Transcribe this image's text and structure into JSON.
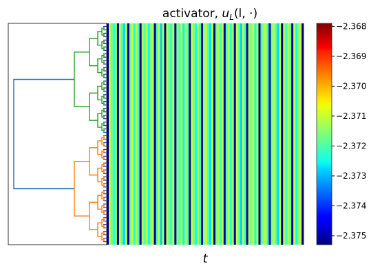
{
  "chart_data": {
    "type": "heatmap",
    "title": "activator, $u_L(l, \\cdot)$",
    "title_parts": {
      "prefix": "activator, ",
      "u": "u",
      "sub": "L",
      "args": "(l, ·)"
    },
    "xlabel": "t",
    "ylabel": "",
    "colormap": "jet",
    "colorbar": {
      "min": -2.3753,
      "max": -2.3679,
      "ticks": [
        -2.368,
        -2.369,
        -2.37,
        -2.371,
        -2.372,
        -2.373,
        -2.374,
        -2.375
      ],
      "tick_labels": [
        "−2.368",
        "−2.369",
        "−2.370",
        "−2.371",
        "−2.372",
        "−2.373",
        "−2.374",
        "−2.375"
      ]
    },
    "heatmap_column_values": [
      -2.3752,
      -2.3712,
      -2.3718,
      -2.3722,
      -2.3714,
      -2.3752,
      -2.3712,
      -2.372,
      -2.3728,
      -2.3712,
      -2.375,
      -2.3716,
      -2.3711,
      -2.3723,
      -2.3711,
      -2.3721,
      -2.3752,
      -2.3713,
      -2.3719,
      -2.3711,
      -2.3725,
      -2.3716,
      -2.3712,
      -2.3751,
      -2.372,
      -2.3712,
      -2.3729,
      -2.3714,
      -2.3752,
      -2.3711,
      -2.3718,
      -2.3722,
      -2.3712,
      -2.375,
      -2.3715,
      -2.3721,
      -2.3711,
      -2.3726,
      -2.3713,
      -2.3719,
      -2.3752,
      -2.3712,
      -2.3717,
      -2.3724,
      -2.3711,
      -2.3722,
      -2.3751,
      -2.3714,
      -2.3712,
      -2.372,
      -2.3727,
      -2.3711,
      -2.3752,
      -2.3716,
      -2.3713,
      -2.3721,
      -2.3711,
      -2.375,
      -2.3719,
      -2.3712,
      -2.3723,
      -2.3714,
      -2.3752,
      -2.3711,
      -2.3718,
      -2.3729,
      -2.3712,
      -2.3721,
      -2.3751,
      -2.3713,
      -2.3717,
      -2.3711,
      -2.3725,
      -2.3712,
      -2.3752,
      -2.372,
      -2.3714,
      -2.3711,
      -2.3722,
      -2.375,
      -2.3716,
      -2.3712,
      -2.3719,
      -2.3728,
      -2.3711,
      -2.3752,
      -2.3713,
      -2.3721,
      -2.3712,
      -2.3718,
      -2.3751,
      -2.3711,
      -2.3724,
      -2.3714,
      -2.3712,
      -2.3752
    ],
    "dendrogram": {
      "orientation": "left",
      "clusters": [
        {
          "name": "",
          "color": "#2ca02c"
        },
        {
          "name": "",
          "color": "#ff7f0e"
        }
      ],
      "root_color": "#1f77b4",
      "leaf_count": 64
    }
  }
}
